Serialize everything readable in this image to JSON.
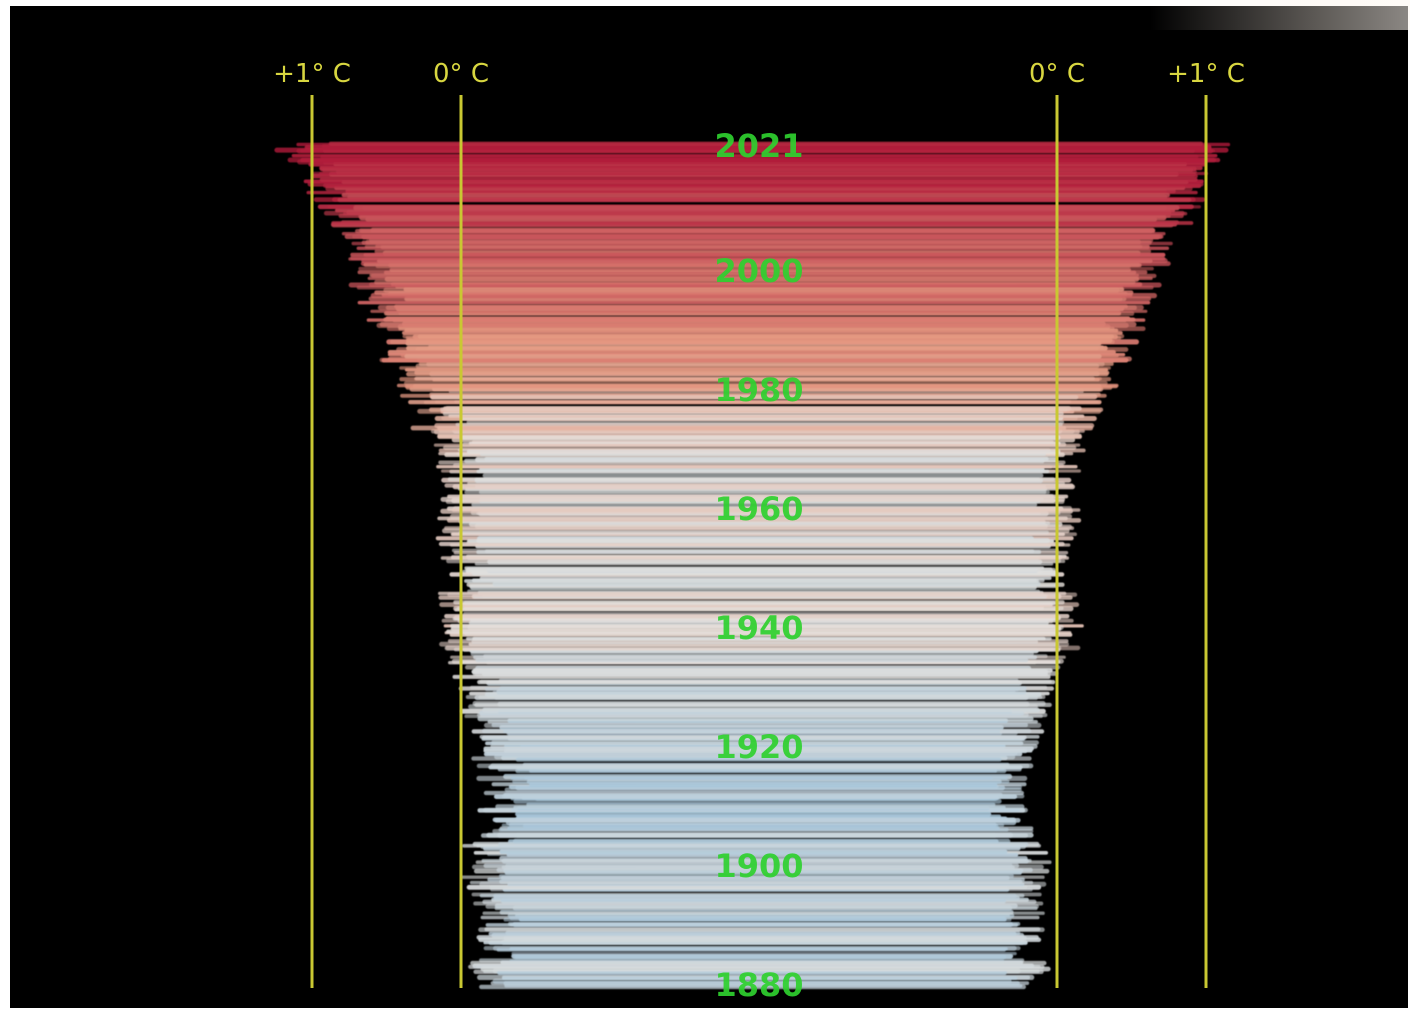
{
  "chart_data": {
    "type": "line",
    "title": "",
    "xlabel": "",
    "ylabel": "",
    "description_of_form": "spiral of annual temperature rings viewed edge-on; ring half-width = offset",
    "axes": [
      {
        "label": "+1° C",
        "value": 1,
        "side": "left"
      },
      {
        "label": "0° C",
        "value": 0,
        "side": "left"
      },
      {
        "label": "0° C",
        "value": 0,
        "side": "right"
      },
      {
        "label": "+1° C",
        "value": 1,
        "side": "right"
      }
    ],
    "year_ticks": [
      "2021",
      "2000",
      "1980",
      "1960",
      "1940",
      "1920",
      "1900",
      "1880"
    ],
    "y_range": [
      1880,
      2021
    ],
    "x_range": [
      -0.5,
      1.2
    ],
    "series": [
      {
        "x": [
          1880,
          1890,
          1900,
          1910,
          1920,
          1930,
          1940,
          1950,
          1960,
          1970,
          1980,
          1990,
          2000,
          2010,
          2021
        ],
        "y": [
          -0.2,
          -0.25,
          -0.18,
          -0.35,
          -0.27,
          -0.15,
          0.05,
          -0.05,
          0.0,
          0.03,
          0.25,
          0.45,
          0.6,
          0.8,
          1.05
        ]
      }
    ],
    "color_scale": {
      "cold": "#aac8dc",
      "neutral": "#e6e2de",
      "warm": "#e69a82",
      "hot": "#b41e3c"
    }
  },
  "colors": {
    "background": "#000000",
    "axis_line": "#c9c832",
    "axis_text": "#d8d640",
    "year_text": "#2fd12f"
  }
}
